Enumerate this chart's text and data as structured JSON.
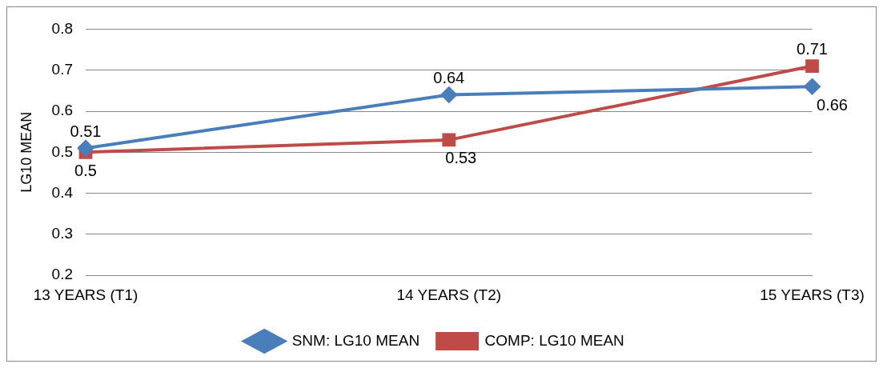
{
  "chart_data": {
    "type": "line",
    "ylabel": "LG10 MEAN",
    "categories": [
      "13 YEARS (T1)",
      "14 YEARS (T2)",
      "15 YEARS (T3)"
    ],
    "series": [
      {
        "name": "SNM: LG10 MEAN",
        "color": "#4a7ebb",
        "marker": "diamond",
        "values": [
          0.51,
          0.64,
          0.66
        ]
      },
      {
        "name": "COMP: LG10 MEAN",
        "color": "#be4b48",
        "marker": "square",
        "values": [
          0.5,
          0.53,
          0.71
        ]
      }
    ],
    "ylim": [
      0.2,
      0.8
    ],
    "yticks": [
      0.2,
      0.3,
      0.4,
      0.5,
      0.6,
      0.7,
      0.8
    ],
    "grid": "y",
    "legend": "bottom",
    "data_labels": true,
    "line_style": "solid"
  }
}
